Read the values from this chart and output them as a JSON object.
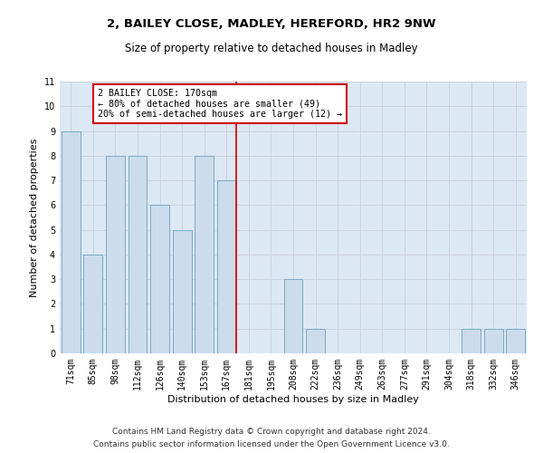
{
  "title": "2, BAILEY CLOSE, MADLEY, HEREFORD, HR2 9NW",
  "subtitle": "Size of property relative to detached houses in Madley",
  "xlabel": "Distribution of detached houses by size in Madley",
  "ylabel": "Number of detached properties",
  "categories": [
    "71sqm",
    "85sqm",
    "98sqm",
    "112sqm",
    "126sqm",
    "140sqm",
    "153sqm",
    "167sqm",
    "181sqm",
    "195sqm",
    "208sqm",
    "222sqm",
    "236sqm",
    "249sqm",
    "263sqm",
    "277sqm",
    "291sqm",
    "304sqm",
    "318sqm",
    "332sqm",
    "346sqm"
  ],
  "values": [
    9,
    4,
    8,
    8,
    6,
    5,
    8,
    7,
    0,
    0,
    3,
    1,
    0,
    0,
    0,
    0,
    0,
    0,
    1,
    1,
    1
  ],
  "bar_color": "#ccdcec",
  "bar_edge_color": "#7aaac8",
  "highlight_bar_index": 7,
  "highlight_line_color": "#cc0000",
  "annotation_text": "2 BAILEY CLOSE: 170sqm\n← 80% of detached houses are smaller (49)\n20% of semi-detached houses are larger (12) →",
  "annotation_box_color": "#ffffff",
  "annotation_box_edge_color": "#cc0000",
  "ylim": [
    0,
    11
  ],
  "yticks": [
    0,
    1,
    2,
    3,
    4,
    5,
    6,
    7,
    8,
    9,
    10,
    11
  ],
  "grid_color": "#c8d0dc",
  "bg_color": "#dce8f4",
  "footer_line1": "Contains HM Land Registry data © Crown copyright and database right 2024.",
  "footer_line2": "Contains public sector information licensed under the Open Government Licence v3.0.",
  "title_fontsize": 9.5,
  "subtitle_fontsize": 8.5,
  "tick_fontsize": 7,
  "ylabel_fontsize": 8,
  "xlabel_fontsize": 8,
  "footer_fontsize": 6.5
}
